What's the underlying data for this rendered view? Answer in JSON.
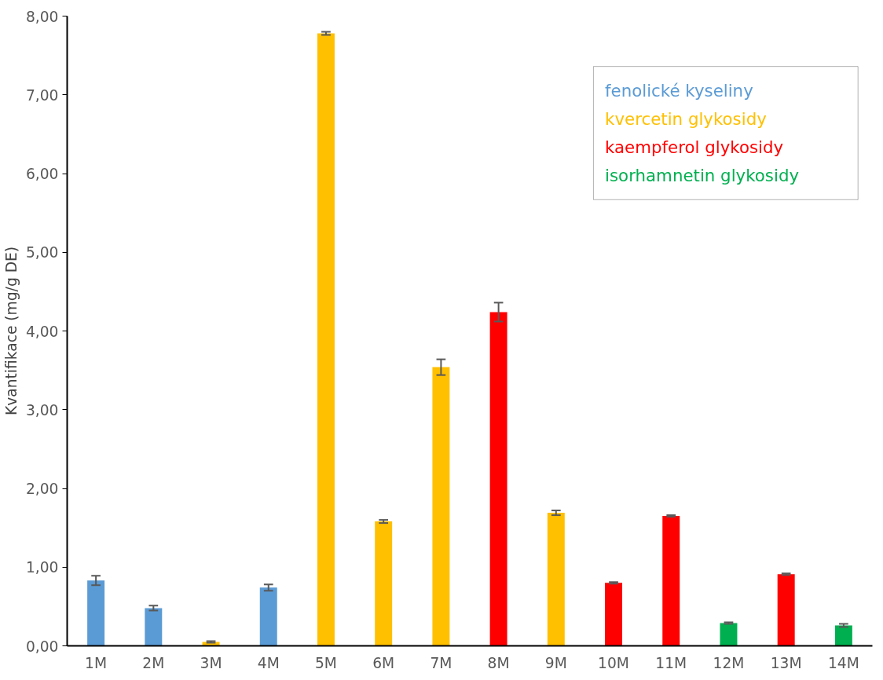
{
  "chart_data": {
    "type": "bar",
    "ylabel": "Kvantifikace (mg/g DE)",
    "categories": [
      "1M",
      "2M",
      "3M",
      "4M",
      "5M",
      "6M",
      "7M",
      "8M",
      "9M",
      "10M",
      "11M",
      "12M",
      "13M",
      "14M"
    ],
    "series": [
      {
        "name": "fenolické kyseliny",
        "color": "#5b9bd5",
        "values": [
          0.83,
          0.48,
          null,
          0.74,
          null,
          null,
          null,
          null,
          null,
          null,
          null,
          null,
          null,
          null
        ],
        "errors": [
          0.06,
          0.03,
          null,
          0.04,
          null,
          null,
          null,
          null,
          null,
          null,
          null,
          null,
          null,
          null
        ]
      },
      {
        "name": "kvercetin glykosidy",
        "color": "#ffc000",
        "values": [
          null,
          null,
          0.05,
          null,
          7.78,
          1.58,
          3.54,
          null,
          1.69,
          null,
          null,
          null,
          null,
          null
        ],
        "errors": [
          null,
          null,
          0.01,
          null,
          0.02,
          0.02,
          0.1,
          null,
          0.03,
          null,
          null,
          null,
          null,
          null
        ]
      },
      {
        "name": "kaempferol glykosidy",
        "color": "#ff0000",
        "values": [
          null,
          null,
          null,
          null,
          null,
          null,
          null,
          4.24,
          null,
          0.8,
          1.65,
          null,
          0.91,
          null
        ],
        "errors": [
          null,
          null,
          null,
          null,
          null,
          null,
          null,
          0.12,
          null,
          0.01,
          0.01,
          null,
          0.01,
          null
        ]
      },
      {
        "name": "isorhamnetin glykosidy",
        "color": "#00b050",
        "values": [
          null,
          null,
          null,
          null,
          null,
          null,
          null,
          null,
          null,
          null,
          null,
          0.29,
          null,
          0.26
        ],
        "errors": [
          null,
          null,
          null,
          null,
          null,
          null,
          null,
          null,
          null,
          null,
          null,
          0.01,
          null,
          0.02
        ]
      }
    ],
    "ylim": [
      0,
      8
    ],
    "yticks": [
      {
        "value": 0,
        "label": "0,00"
      },
      {
        "value": 1,
        "label": "1,00"
      },
      {
        "value": 2,
        "label": "2,00"
      },
      {
        "value": 3,
        "label": "3,00"
      },
      {
        "value": 4,
        "label": "4,00"
      },
      {
        "value": 5,
        "label": "5,00"
      },
      {
        "value": 6,
        "label": "6,00"
      },
      {
        "value": 7,
        "label": "7,00"
      },
      {
        "value": 8,
        "label": "8,00"
      }
    ],
    "legend": "top right"
  }
}
